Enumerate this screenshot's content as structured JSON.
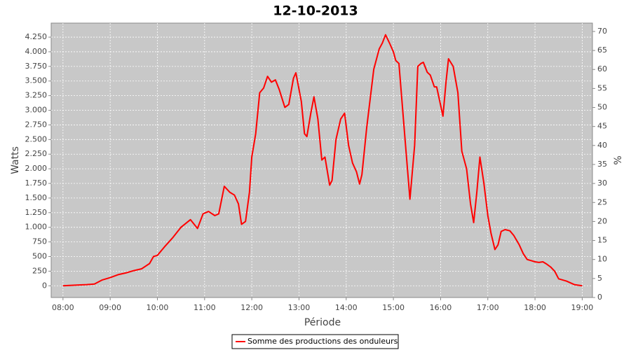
{
  "chart_data": {
    "type": "line",
    "title": "12-10-2013",
    "x_label": "Période",
    "y_label": "Watts",
    "y2_label": "%",
    "x": [
      "08:00",
      "08:15",
      "08:30",
      "08:40",
      "08:50",
      "09:00",
      "09:10",
      "09:20",
      "09:30",
      "09:40",
      "09:50",
      "09:55",
      "10:00",
      "10:10",
      "10:20",
      "10:30",
      "10:42",
      "10:51",
      "10:58",
      "11:05",
      "11:13",
      "11:18",
      "11:25",
      "11:32",
      "11:38",
      "11:43",
      "11:47",
      "11:52",
      "11:57",
      "12:00",
      "12:05",
      "12:10",
      "12:15",
      "12:20",
      "12:25",
      "12:30",
      "12:35",
      "12:42",
      "12:47",
      "12:53",
      "12:56",
      "13:03",
      "13:07",
      "13:10",
      "13:15",
      "13:19",
      "13:24",
      "13:29",
      "13:33",
      "13:39",
      "13:42",
      "13:47",
      "13:53",
      "13:58",
      "14:03",
      "14:08",
      "14:13",
      "14:17",
      "14:20",
      "14:26",
      "14:35",
      "14:42",
      "14:46",
      "14:50",
      "14:55",
      "15:00",
      "15:03",
      "15:07",
      "15:16",
      "15:21",
      "15:27",
      "15:31",
      "15:35",
      "15:38",
      "15:43",
      "15:47",
      "15:52",
      "15:55",
      "16:03",
      "16:07",
      "16:10",
      "16:16",
      "16:22",
      "16:27",
      "16:33",
      "16:38",
      "16:42",
      "16:46",
      "16:50",
      "16:55",
      "17:00",
      "17:04",
      "17:09",
      "17:13",
      "17:17",
      "17:22",
      "17:28",
      "17:33",
      "17:40",
      "17:45",
      "17:50",
      "17:55",
      "18:00",
      "18:05",
      "18:10",
      "18:15",
      "18:20",
      "18:25",
      "18:30",
      "18:40",
      "18:50",
      "19:00"
    ],
    "series": [
      {
        "name": "Somme des productions des onduleurs",
        "color": "#ff0000",
        "values": [
          0,
          10,
          20,
          30,
          100,
          140,
          190,
          220,
          260,
          290,
          380,
          500,
          520,
          680,
          830,
          1000,
          1130,
          980,
          1230,
          1270,
          1200,
          1230,
          1700,
          1600,
          1550,
          1400,
          1050,
          1100,
          1600,
          2200,
          2600,
          3300,
          3380,
          3580,
          3480,
          3520,
          3350,
          3050,
          3100,
          3550,
          3640,
          3150,
          2600,
          2550,
          2950,
          3230,
          2850,
          2150,
          2200,
          1720,
          1800,
          2500,
          2850,
          2950,
          2400,
          2100,
          1950,
          1740,
          1900,
          2700,
          3700,
          4050,
          4150,
          4290,
          4150,
          4000,
          3850,
          3800,
          2300,
          1480,
          2400,
          3750,
          3800,
          3820,
          3650,
          3600,
          3400,
          3400,
          2900,
          3500,
          3880,
          3750,
          3300,
          2300,
          2000,
          1400,
          1080,
          1600,
          2200,
          1750,
          1200,
          900,
          620,
          700,
          930,
          960,
          940,
          860,
          700,
          550,
          450,
          430,
          410,
          400,
          410,
          370,
          320,
          250,
          120,
          80,
          20,
          0
        ]
      }
    ],
    "xlim": [
      "07:45",
      "19:13"
    ],
    "xticks": [
      "08:00",
      "09:00",
      "10:00",
      "11:00",
      "12:00",
      "13:00",
      "14:00",
      "15:00",
      "16:00",
      "17:00",
      "18:00",
      "19:00"
    ],
    "ylim": [
      -200,
      4490
    ],
    "yticks": [
      0,
      250,
      500,
      750,
      {
        "value": 1000,
        "label": "1.000"
      },
      {
        "value": 1250,
        "label": "1.250"
      },
      {
        "value": 1500,
        "label": "1.500"
      },
      {
        "value": 1750,
        "label": "1.750"
      },
      {
        "value": 2000,
        "label": "2.000"
      },
      {
        "value": 2250,
        "label": "2.250"
      },
      {
        "value": 2500,
        "label": "2.500"
      },
      {
        "value": 2750,
        "label": "2.750"
      },
      {
        "value": 3000,
        "label": "3.000"
      },
      {
        "value": 3250,
        "label": "3.250"
      },
      {
        "value": 3500,
        "label": "3.500"
      },
      {
        "value": 3750,
        "label": "3.750"
      },
      {
        "value": 4000,
        "label": "4.000"
      },
      {
        "value": 4250,
        "label": "4.250"
      }
    ],
    "y2lim": [
      0,
      72.2
    ],
    "y2ticks": [
      0,
      5,
      10,
      15,
      20,
      25,
      30,
      35,
      40,
      45,
      50,
      55,
      60,
      65,
      70
    ],
    "grid": true,
    "plot_background": "#c8c8c8",
    "legend": "bottom"
  }
}
